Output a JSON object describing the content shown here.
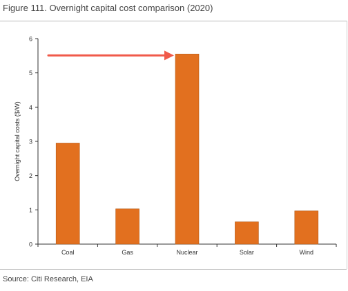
{
  "figure": {
    "title": "Figure 111. Overnight capital cost comparison (2020)",
    "source": "Source: Citi Research, EIA"
  },
  "colors": {
    "bar": "#E2701F",
    "bar_stroke": "#B45A18",
    "arrow": "#F05A4A",
    "axis": "#333333"
  },
  "chart_data": {
    "type": "bar",
    "categories": [
      "Coal",
      "Gas",
      "Nuclear",
      "Solar",
      "Wind"
    ],
    "values": [
      2.95,
      1.03,
      5.55,
      0.65,
      0.97
    ],
    "ylabel": "Overnight capital costs ($/W)",
    "ylim": [
      0,
      6
    ],
    "yticks": [
      "0",
      "1",
      "2",
      "3",
      "4",
      "5",
      "6"
    ],
    "grid": false,
    "annotation": {
      "type": "arrow",
      "target_category": "Nuclear"
    }
  }
}
